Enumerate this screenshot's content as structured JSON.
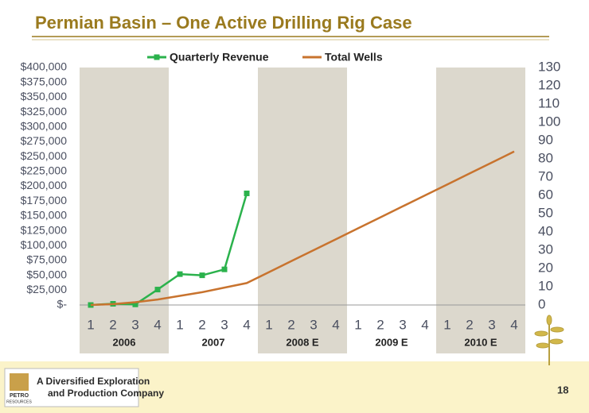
{
  "header": {
    "title": "Permian Basin – One Active Drilling Rig Case"
  },
  "chart_data": {
    "type": "line",
    "categories": [
      "1",
      "2",
      "3",
      "4",
      "1",
      "2",
      "3",
      "4",
      "1",
      "2",
      "3",
      "4",
      "1",
      "2",
      "3",
      "4",
      "1",
      "2",
      "3",
      "4"
    ],
    "groups": [
      "2006",
      "2007",
      "2008 E",
      "2009 E",
      "2010 E"
    ],
    "group_shading": [
      true,
      false,
      true,
      false,
      true
    ],
    "series": [
      {
        "name": "Quarterly Revenue",
        "color": "#2bb24c",
        "marker": "square",
        "values": [
          0,
          2000,
          1000,
          26000,
          52000,
          50000,
          60000,
          188000,
          null,
          null,
          null,
          null,
          null,
          null,
          null,
          null,
          null,
          null,
          null,
          null
        ]
      },
      {
        "name": "Total Wells",
        "color": "#c8732e",
        "axis": "y2",
        "values": [
          0,
          0.5,
          1.5,
          3,
          5,
          7,
          9.5,
          12,
          18,
          24,
          30,
          36,
          42,
          48,
          54,
          60,
          66,
          72,
          78,
          84
        ]
      }
    ],
    "ylim": [
      0,
      400000
    ],
    "yticks": [
      {
        "value": 0,
        "label": "$-"
      },
      {
        "value": 25000,
        "label": "$25,000"
      },
      {
        "value": 50000,
        "label": "$50,000"
      },
      {
        "value": 75000,
        "label": "$75,000"
      },
      {
        "value": 100000,
        "label": "$100,000"
      },
      {
        "value": 125000,
        "label": "$125,000"
      },
      {
        "value": 150000,
        "label": "$150,000"
      },
      {
        "value": 175000,
        "label": "$175,000"
      },
      {
        "value": 200000,
        "label": "$200,000"
      },
      {
        "value": 225000,
        "label": "$225,000"
      },
      {
        "value": 250000,
        "label": "$250,000"
      },
      {
        "value": 275000,
        "label": "$275,000"
      },
      {
        "value": 300000,
        "label": "$300,000"
      },
      {
        "value": 325000,
        "label": "$325,000"
      },
      {
        "value": 350000,
        "label": "$350,000"
      },
      {
        "value": 375000,
        "label": "$375,000"
      },
      {
        "value": 400000,
        "label": "$400,000"
      }
    ],
    "y2lim": [
      0,
      130
    ],
    "y2ticks": [
      0,
      10,
      20,
      30,
      40,
      50,
      60,
      70,
      80,
      90,
      100,
      110,
      120,
      130
    ]
  },
  "footer": {
    "logo": [
      "PETRO",
      "RESOURCES"
    ],
    "tagline": [
      "A Diversified Exploration",
      "and Production Company"
    ],
    "page_number": "18"
  }
}
